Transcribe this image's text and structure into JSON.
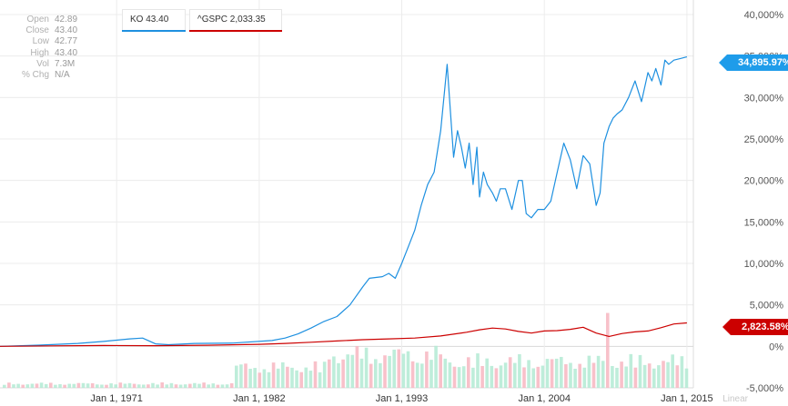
{
  "info_panel": [
    {
      "key": "Open",
      "value": "42.89"
    },
    {
      "key": "Close",
      "value": "43.40"
    },
    {
      "key": "Low",
      "value": "42.77"
    },
    {
      "key": "High",
      "value": "43.40"
    },
    {
      "key": "Vol",
      "value": "7.3M"
    },
    {
      "key": "% Chg",
      "value": "N/A"
    }
  ],
  "legend": {
    "ko": {
      "label": "KO 43.40",
      "color": "#1e90e0"
    },
    "sp": {
      "label": "^GSPC 2,033.35",
      "color": "#cc0000"
    }
  },
  "flags": {
    "ko": "34,895.97%",
    "sp": "2,823.58%"
  },
  "scale_label": "Linear",
  "chart_data": {
    "type": "line",
    "x_tick_labels": [
      "Jan 1, 1971",
      "Jan 1, 1982",
      "Jan 1, 1993",
      "Jan 1, 2004",
      "Jan 1, 2015"
    ],
    "y_tick_labels": [
      "-5,000%",
      "0%",
      "5,000%",
      "10,000%",
      "15,000%",
      "20,000%",
      "25,000%",
      "30,000%",
      "35,000%",
      "40,000%"
    ],
    "ylim": [
      -5000,
      40000
    ],
    "xlim": [
      1962,
      2015.5
    ],
    "grid": true,
    "series": [
      {
        "name": "KO",
        "color": "#1e90e0",
        "x": [
          1962,
          1965,
          1968,
          1970,
          1972,
          1973,
          1974,
          1975,
          1977,
          1980,
          1983,
          1984,
          1985,
          1986,
          1987,
          1988,
          1989,
          1990,
          1990.5,
          1991,
          1991.5,
          1992,
          1992.5,
          1993,
          1993.5,
          1994,
          1994.5,
          1995,
          1995.5,
          1996,
          1996.5,
          1997,
          1997.3,
          1997.6,
          1997.9,
          1998.2,
          1998.5,
          1998.8,
          1999,
          1999.3,
          1999.6,
          2000,
          2000.3,
          2000.6,
          2001,
          2001.5,
          2002,
          2002.3,
          2002.6,
          2003,
          2003.5,
          2004,
          2004.5,
          2005,
          2005.5,
          2006,
          2006.5,
          2007,
          2007.5,
          2008,
          2008.3,
          2008.6,
          2009,
          2009.3,
          2009.6,
          2010,
          2010.5,
          2011,
          2011.5,
          2012,
          2012.3,
          2012.6,
          2013,
          2013.3,
          2013.6,
          2014,
          2014.5,
          2015
        ],
        "values": [
          0,
          150,
          350,
          600,
          900,
          1000,
          300,
          200,
          350,
          400,
          700,
          1000,
          1500,
          2200,
          3000,
          3600,
          5000,
          7200,
          8200,
          8300,
          8400,
          8800,
          8200,
          10000,
          12000,
          14000,
          17000,
          19500,
          21000,
          26000,
          34000,
          22800,
          26000,
          24000,
          21500,
          24500,
          19500,
          24000,
          18000,
          21000,
          19500,
          18500,
          17500,
          19000,
          19000,
          16500,
          20000,
          20000,
          16000,
          15500,
          16500,
          16500,
          17500,
          21000,
          24500,
          22500,
          19000,
          23000,
          22000,
          17000,
          18500,
          24500,
          26500,
          27500,
          28000,
          28500,
          30000,
          32000,
          29500,
          33000,
          32000,
          33500,
          31500,
          34500,
          34000,
          34500,
          34700,
          34900
        ]
      },
      {
        "name": "^GSPC",
        "color": "#cc0000",
        "x": [
          1962,
          1966,
          1970,
          1974,
          1978,
          1982,
          1984,
          1986,
          1988,
          1990,
          1992,
          1994,
          1996,
          1998,
          1999,
          2000,
          2001,
          2002,
          2003,
          2004,
          2005,
          2006,
          2007,
          2008,
          2009,
          2010,
          2011,
          2012,
          2013,
          2014,
          2015
        ],
        "values": [
          0,
          60,
          100,
          80,
          130,
          250,
          350,
          500,
          650,
          800,
          900,
          1000,
          1250,
          1700,
          2000,
          2200,
          2100,
          1800,
          1600,
          1850,
          1900,
          2050,
          2300,
          1600,
          1200,
          1550,
          1750,
          1850,
          2250,
          2700,
          2823
        ]
      }
    ]
  }
}
